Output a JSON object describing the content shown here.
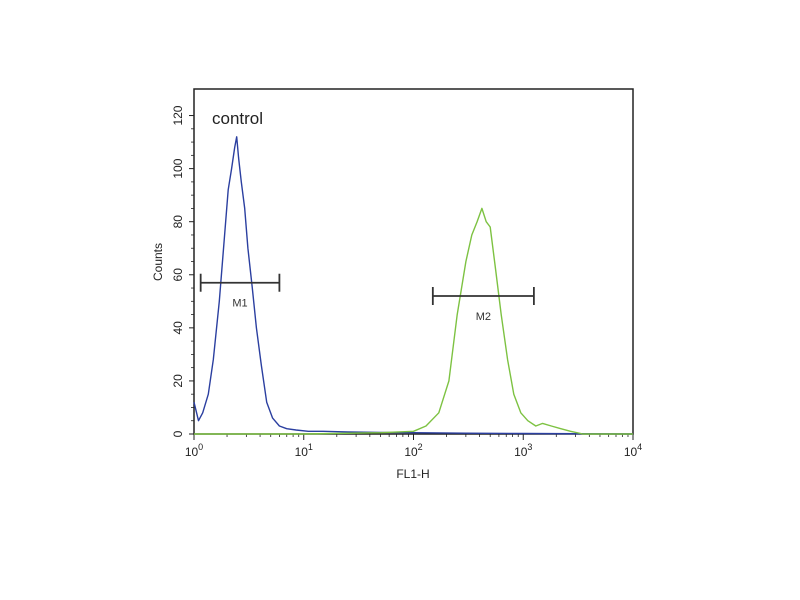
{
  "chart_data": {
    "type": "line",
    "title": "",
    "xlabel": "FL1-H",
    "ylabel": "Counts",
    "xscale": "log",
    "xlim": [
      1,
      10000
    ],
    "ylim": [
      0,
      130
    ],
    "x_ticks": [
      {
        "value": 1,
        "base": "10",
        "exp": "0"
      },
      {
        "value": 10,
        "base": "10",
        "exp": "1"
      },
      {
        "value": 100,
        "base": "10",
        "exp": "2"
      },
      {
        "value": 1000,
        "base": "10",
        "exp": "3"
      },
      {
        "value": 10000,
        "base": "10",
        "exp": "4"
      }
    ],
    "y_ticks": [
      0,
      20,
      40,
      60,
      80,
      100,
      120
    ],
    "annotation": "control",
    "grid": false,
    "series": [
      {
        "color": "#2b3fa0",
        "x": [
          1.0,
          1.1,
          1.2,
          1.35,
          1.5,
          1.7,
          1.9,
          2.05,
          2.2,
          2.35,
          2.45,
          2.55,
          2.7,
          2.9,
          3.1,
          3.4,
          3.7,
          4.1,
          4.6,
          5.2,
          6.0,
          7.0,
          8.5,
          11,
          15,
          25,
          50,
          100,
          300,
          1000,
          10000
        ],
        "y": [
          12,
          5,
          8,
          15,
          28,
          50,
          75,
          92,
          100,
          108,
          112,
          104,
          95,
          85,
          70,
          55,
          40,
          26,
          12,
          6,
          3,
          2,
          1.5,
          1,
          1,
          0.8,
          0.6,
          0.5,
          0.3,
          0.2,
          0
        ]
      },
      {
        "color": "#7dc242",
        "x": [
          1.0,
          10,
          50,
          100,
          130,
          170,
          210,
          250,
          300,
          340,
          380,
          420,
          460,
          500,
          560,
          630,
          720,
          820,
          950,
          1100,
          1300,
          1500,
          1800,
          2200,
          2700,
          3500,
          10000
        ],
        "y": [
          0,
          0,
          0.5,
          1,
          3,
          8,
          20,
          45,
          65,
          75,
          80,
          85,
          80,
          78,
          62,
          45,
          28,
          15,
          8,
          5,
          3,
          4,
          3,
          2,
          1,
          0,
          0
        ]
      }
    ],
    "markers": [
      {
        "label": "M1",
        "x_start": 1.15,
        "x_end": 6.0,
        "y": 57
      },
      {
        "label": "M2",
        "x_start": 150,
        "x_end": 1250,
        "y": 52
      }
    ]
  }
}
